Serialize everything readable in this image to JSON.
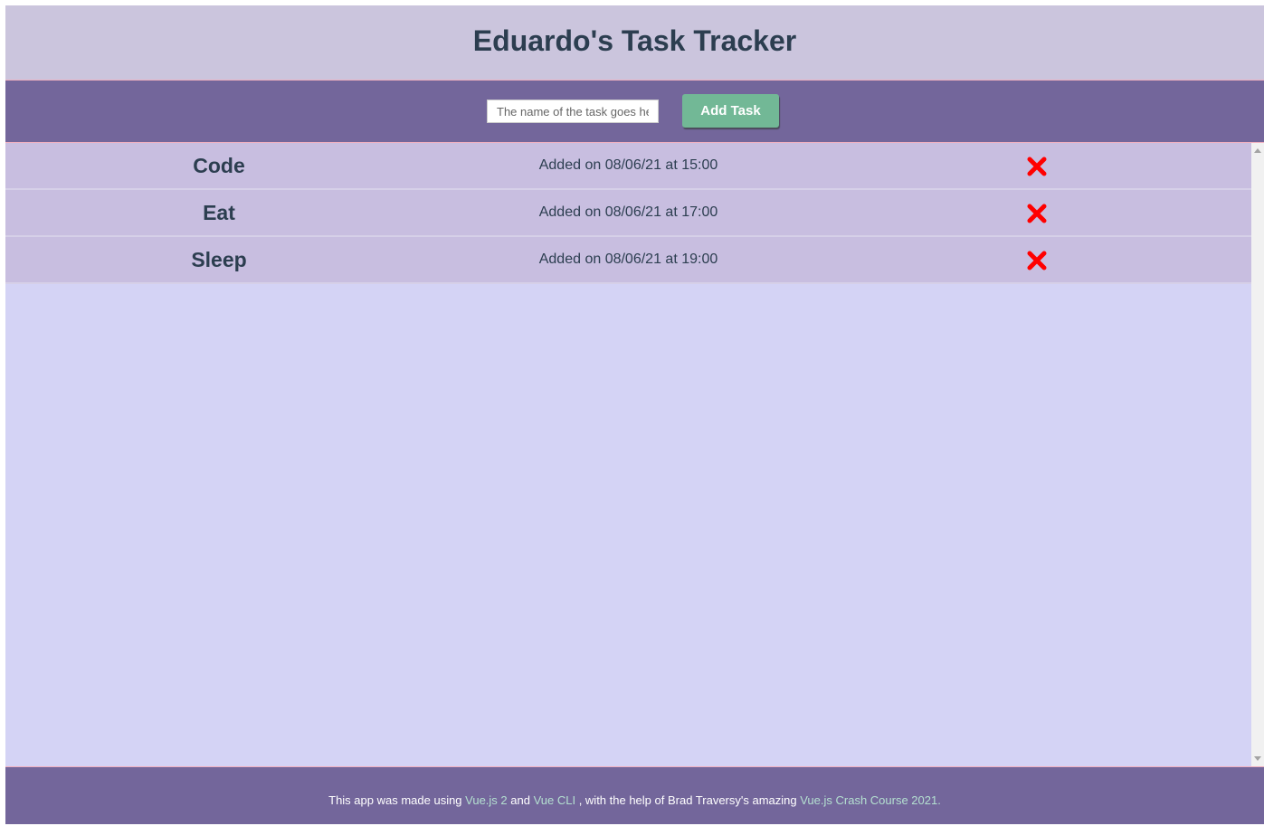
{
  "header": {
    "title": "Eduardo's Task Tracker"
  },
  "toolbar": {
    "input_value": "",
    "input_placeholder": "The name of the task goes here",
    "add_label": "Add Task"
  },
  "tasks": [
    {
      "name": "Code",
      "added": "Added on 08/06/21 at 15:00"
    },
    {
      "name": "Eat",
      "added": "Added on 08/06/21 at 17:00"
    },
    {
      "name": "Sleep",
      "added": "Added on 08/06/21 at 19:00"
    }
  ],
  "footer": {
    "t1": "This app was made using ",
    "l1": "Vue.js 2",
    "t2": " and ",
    "l2": "Vue CLI",
    " t3": "",
    "t3": " , with the help of Brad Traversy's amazing ",
    "l3": "Vue.js Crash Course 2021",
    "t4": "."
  },
  "colors": {
    "header": "#cbc5dd",
    "toolbar": "#73669b",
    "row": "#c8bee0",
    "list_bg": "#d4d3f5",
    "button": "#72b896",
    "delete": "#ff0000",
    "link": "#b4e0d0"
  },
  "icons": {
    "delete": "x-mark-icon"
  }
}
